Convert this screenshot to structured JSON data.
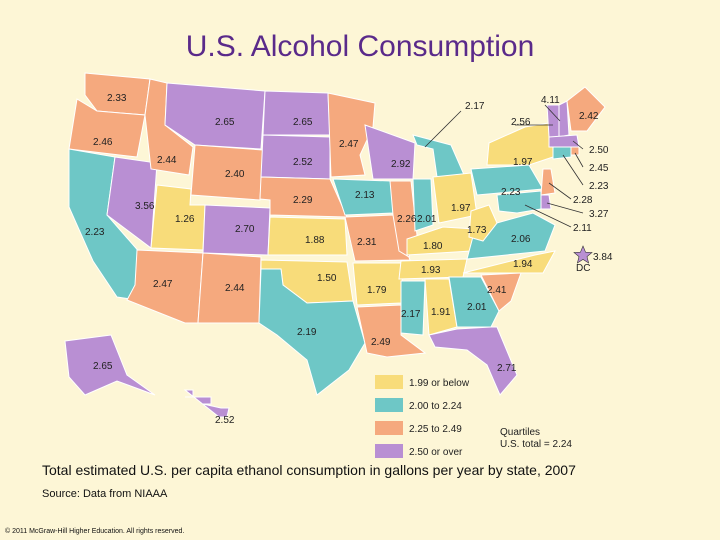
{
  "title": "U.S. Alcohol Consumption",
  "caption": "Total estimated U.S. per capita ethanol consumption in gallons per year by state, 2007",
  "source": "Source: Data from NIAAA",
  "copyright": "© 2011 McGraw-Hill Higher Education. All rights reserved.",
  "colors": {
    "q1": "#f8dc7a",
    "q2": "#6ec7c6",
    "q3": "#f5a97e",
    "q4": "#b98fd3"
  },
  "legend": {
    "items": [
      {
        "label": "1.99 or below",
        "quartile": "q1"
      },
      {
        "label": "2.00 to 2.24",
        "quartile": "q2"
      },
      {
        "label": "2.25 to 2.49",
        "quartile": "q3"
      },
      {
        "label": "2.50 or over",
        "quartile": "q4"
      }
    ],
    "quartiles_label": "Quartiles",
    "total_label": "U.S. total = 2.24"
  },
  "dc_label": "DC",
  "map_data": [
    {
      "state": "WA",
      "value": "2.33",
      "quartile": "q3"
    },
    {
      "state": "OR",
      "value": "2.46",
      "quartile": "q3"
    },
    {
      "state": "CA",
      "value": "2.23",
      "quartile": "q2"
    },
    {
      "state": "NV",
      "value": "3.56",
      "quartile": "q4"
    },
    {
      "state": "ID",
      "value": "2.44",
      "quartile": "q3"
    },
    {
      "state": "MT",
      "value": "2.65",
      "quartile": "q4"
    },
    {
      "state": "WY",
      "value": "2.40",
      "quartile": "q3"
    },
    {
      "state": "UT",
      "value": "1.26",
      "quartile": "q1"
    },
    {
      "state": "CO",
      "value": "2.70",
      "quartile": "q4"
    },
    {
      "state": "AZ",
      "value": "2.47",
      "quartile": "q3"
    },
    {
      "state": "NM",
      "value": "2.44",
      "quartile": "q3"
    },
    {
      "state": "ND",
      "value": "2.65",
      "quartile": "q4"
    },
    {
      "state": "SD",
      "value": "2.52",
      "quartile": "q4"
    },
    {
      "state": "NE",
      "value": "2.29",
      "quartile": "q3"
    },
    {
      "state": "KS",
      "value": "1.88",
      "quartile": "q1"
    },
    {
      "state": "OK",
      "value": "1.50",
      "quartile": "q1"
    },
    {
      "state": "TX",
      "value": "2.19",
      "quartile": "q2"
    },
    {
      "state": "MN",
      "value": "2.47",
      "quartile": "q3"
    },
    {
      "state": "IA",
      "value": "2.13",
      "quartile": "q2"
    },
    {
      "state": "MO",
      "value": "2.31",
      "quartile": "q3"
    },
    {
      "state": "AR",
      "value": "1.79",
      "quartile": "q1"
    },
    {
      "state": "LA",
      "value": "2.49",
      "quartile": "q3"
    },
    {
      "state": "WI",
      "value": "2.92",
      "quartile": "q4"
    },
    {
      "state": "IL",
      "value": "2.26",
      "quartile": "q3"
    },
    {
      "state": "MI",
      "value": "2.17",
      "quartile": "q2"
    },
    {
      "state": "IN",
      "value": "2.01",
      "quartile": "q2"
    },
    {
      "state": "OH",
      "value": "1.97",
      "quartile": "q1"
    },
    {
      "state": "KY",
      "value": "1.80",
      "quartile": "q1"
    },
    {
      "state": "TN",
      "value": "1.93",
      "quartile": "q1"
    },
    {
      "state": "MS",
      "value": "2.17",
      "quartile": "q2"
    },
    {
      "state": "AL",
      "value": "1.91",
      "quartile": "q1"
    },
    {
      "state": "GA",
      "value": "2.01",
      "quartile": "q2"
    },
    {
      "state": "FL",
      "value": "2.71",
      "quartile": "q4"
    },
    {
      "state": "SC",
      "value": "2.41",
      "quartile": "q3"
    },
    {
      "state": "NC",
      "value": "1.94",
      "quartile": "q1"
    },
    {
      "state": "VA",
      "value": "2.06",
      "quartile": "q2"
    },
    {
      "state": "WV",
      "value": "1.73",
      "quartile": "q1"
    },
    {
      "state": "PA",
      "value": "2.23",
      "quartile": "q2"
    },
    {
      "state": "NY",
      "value": "1.97",
      "quartile": "q1"
    },
    {
      "state": "VT",
      "value": "2.56",
      "quartile": "q4"
    },
    {
      "state": "NH",
      "value": "4.11",
      "quartile": "q4"
    },
    {
      "state": "ME",
      "value": "2.42",
      "quartile": "q3"
    },
    {
      "state": "MA",
      "value": "2.50",
      "quartile": "q4"
    },
    {
      "state": "RI",
      "value": "2.45",
      "quartile": "q3"
    },
    {
      "state": "CT",
      "value": "2.23",
      "quartile": "q2"
    },
    {
      "state": "NJ",
      "value": "2.28",
      "quartile": "q3"
    },
    {
      "state": "DE",
      "value": "3.27",
      "quartile": "q4"
    },
    {
      "state": "MD",
      "value": "2.11",
      "quartile": "q2"
    },
    {
      "state": "DC",
      "value": "3.84",
      "quartile": "q4"
    },
    {
      "state": "AK",
      "value": "2.65",
      "quartile": "q4"
    },
    {
      "state": "HI",
      "value": "2.52",
      "quartile": "q4"
    }
  ]
}
